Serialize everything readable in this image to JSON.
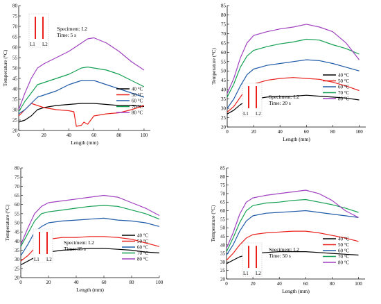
{
  "chart_data": [
    {
      "type": "line",
      "panel": "top-left",
      "specimen_label": "Speciment: L2",
      "time_label": "Time: 5 s",
      "inset": {
        "left_label": "L1",
        "right_label": "L2"
      },
      "xlabel": "Length (mm)",
      "ylabel": "Temperature (°C)",
      "xlim": [
        0,
        105
      ],
      "ylim": [
        20,
        80
      ],
      "xticks": [
        0,
        20,
        40,
        60,
        80,
        100
      ],
      "yticks": [
        20,
        25,
        30,
        35,
        40,
        45,
        50,
        55,
        60,
        65,
        70,
        75,
        80
      ],
      "grid": false,
      "legend_position": "bottom-right",
      "series": [
        {
          "name": "40 °C",
          "color": "#000000",
          "x": [
            0,
            5,
            10,
            15,
            20,
            30,
            40,
            50,
            55,
            60,
            70,
            80,
            90,
            100
          ],
          "y": [
            24,
            25,
            27,
            30,
            31,
            32,
            32.5,
            33,
            33,
            33,
            32.5,
            32,
            32,
            31.5
          ]
        },
        {
          "name": "50 °C",
          "color": "#e8211d",
          "x": [
            0,
            5,
            10,
            15,
            20,
            30,
            40,
            44,
            46,
            50,
            52,
            55,
            60,
            70,
            80,
            90,
            100
          ],
          "y": [
            27,
            30,
            33,
            32,
            31,
            30,
            29.5,
            29,
            22,
            22.5,
            24,
            23,
            27,
            28,
            28.5,
            30,
            32
          ]
        },
        {
          "name": "60 °C",
          "color": "#1f5aa8",
          "x": [
            0,
            5,
            10,
            15,
            20,
            30,
            40,
            50,
            55,
            60,
            70,
            80,
            90,
            100
          ],
          "y": [
            28,
            30,
            33,
            36,
            37,
            39,
            42,
            44,
            44,
            44,
            42,
            40,
            38,
            36
          ]
        },
        {
          "name": "70 °C",
          "color": "#12a050",
          "x": [
            0,
            5,
            10,
            15,
            20,
            30,
            40,
            50,
            55,
            60,
            70,
            80,
            90,
            100
          ],
          "y": [
            29,
            34,
            38,
            42,
            43,
            45,
            47,
            50,
            50.5,
            50,
            49,
            47,
            44,
            41
          ]
        },
        {
          "name": "80 °C",
          "color": "#a040c0",
          "x": [
            0,
            5,
            10,
            15,
            20,
            30,
            40,
            50,
            55,
            60,
            70,
            80,
            90,
            100
          ],
          "y": [
            30,
            38,
            45,
            50,
            52,
            55,
            58,
            62,
            64,
            64.5,
            62,
            58,
            53,
            49
          ]
        }
      ]
    },
    {
      "type": "line",
      "panel": "top-right",
      "specimen_label": "Speciment: L2",
      "time_label": "Time: 20 s",
      "inset": {
        "left_label": "L1",
        "right_label": "L2"
      },
      "xlabel": "Length (mm)",
      "ylabel": "Temperature (°C)",
      "xlim": [
        0,
        105
      ],
      "ylim": [
        20,
        85
      ],
      "xticks": [
        0,
        20,
        40,
        60,
        80,
        100
      ],
      "yticks": [
        20,
        25,
        30,
        35,
        40,
        45,
        50,
        55,
        60,
        65,
        70,
        75,
        80,
        85
      ],
      "grid": false,
      "legend_position": "bottom-right",
      "series": [
        {
          "name": "40 °C",
          "color": "#000000",
          "x": [
            0,
            5,
            10,
            15,
            20,
            30,
            40,
            50,
            60,
            70,
            80,
            90,
            100
          ],
          "y": [
            27,
            29,
            32,
            34,
            35,
            36,
            36.5,
            36.5,
            37,
            36.5,
            36,
            35.5,
            34.5
          ]
        },
        {
          "name": "50 °C",
          "color": "#e8211d",
          "x": [
            0,
            5,
            10,
            15,
            20,
            30,
            40,
            50,
            60,
            70,
            80,
            90,
            100
          ],
          "y": [
            28,
            31,
            36,
            41,
            43,
            45,
            46,
            46.5,
            46,
            45.5,
            44,
            42,
            39.5
          ]
        },
        {
          "name": "60 °C",
          "color": "#1f5aa8",
          "x": [
            0,
            5,
            10,
            15,
            20,
            30,
            40,
            50,
            60,
            70,
            80,
            90,
            100
          ],
          "y": [
            30,
            35,
            42,
            48,
            51,
            53,
            54,
            55,
            56,
            55.5,
            54,
            52,
            50
          ]
        },
        {
          "name": "70 °C",
          "color": "#12a050",
          "x": [
            0,
            5,
            10,
            15,
            20,
            30,
            40,
            50,
            60,
            70,
            80,
            90,
            100
          ],
          "y": [
            36,
            43,
            52,
            58,
            61,
            63,
            64.5,
            65.5,
            67,
            66.5,
            64,
            62,
            59
          ]
        },
        {
          "name": "80 °C",
          "color": "#a040c0",
          "x": [
            0,
            5,
            10,
            15,
            20,
            30,
            40,
            50,
            60,
            70,
            80,
            90,
            100
          ],
          "y": [
            38,
            46,
            57,
            65,
            69,
            71,
            72.5,
            73.5,
            75,
            73.5,
            71,
            65,
            56
          ]
        }
      ]
    },
    {
      "type": "line",
      "panel": "bottom-left",
      "specimen_label": "Speciment: L2",
      "time_label": "Time: 35 s",
      "inset": {
        "left_label": "L1",
        "right_label": "L2"
      },
      "xlabel": "Length (mm)",
      "ylabel": "Temperature (°C)",
      "xlim": [
        0,
        100
      ],
      "ylim": [
        20,
        80
      ],
      "xticks": [
        0,
        20,
        40,
        60,
        80,
        100
      ],
      "yticks": [
        20,
        25,
        30,
        35,
        40,
        45,
        50,
        55,
        60,
        65,
        70,
        75,
        80
      ],
      "grid": false,
      "legend_position": "bottom-right",
      "series": [
        {
          "name": "40 °C",
          "color": "#000000",
          "x": [
            0,
            5,
            10,
            15,
            20,
            30,
            40,
            50,
            60,
            70,
            80,
            90,
            100
          ],
          "y": [
            27,
            29,
            31,
            33,
            34,
            35,
            35.5,
            36,
            36,
            35.5,
            35,
            34,
            33.5
          ]
        },
        {
          "name": "50 °C",
          "color": "#e8211d",
          "x": [
            0,
            5,
            10,
            15,
            20,
            30,
            40,
            50,
            60,
            70,
            80,
            90,
            100
          ],
          "y": [
            29,
            32,
            36,
            39,
            41,
            42,
            42,
            42.5,
            42.5,
            42,
            41,
            39,
            37
          ]
        },
        {
          "name": "60 °C",
          "color": "#1f5aa8",
          "x": [
            0,
            5,
            10,
            15,
            20,
            30,
            40,
            50,
            60,
            70,
            80,
            90,
            100
          ],
          "y": [
            32,
            38,
            45,
            48,
            50,
            51,
            51.5,
            52,
            52.5,
            51.5,
            51,
            50,
            48
          ]
        },
        {
          "name": "70 °C",
          "color": "#12a050",
          "x": [
            0,
            5,
            10,
            15,
            20,
            30,
            40,
            50,
            60,
            70,
            80,
            90,
            100
          ],
          "y": [
            37,
            44,
            51,
            55,
            56,
            57,
            58,
            59,
            59.5,
            59,
            57,
            55,
            52
          ]
        },
        {
          "name": "80 °C",
          "color": "#a040c0",
          "x": [
            0,
            5,
            10,
            15,
            20,
            30,
            40,
            50,
            60,
            70,
            80,
            90,
            100
          ],
          "y": [
            38,
            47,
            55,
            59,
            61,
            62,
            63,
            64,
            65,
            64,
            61,
            58,
            54
          ]
        }
      ]
    },
    {
      "type": "line",
      "panel": "bottom-right",
      "specimen_label": "Speciment: L2",
      "time_label": "Time: 50 s",
      "inset": {
        "left_label": "L1",
        "right_label": "L2"
      },
      "xlabel": "Length (mm)",
      "ylabel": "Temperature (°C)",
      "xlim": [
        0,
        105
      ],
      "ylim": [
        20,
        85
      ],
      "xticks": [
        0,
        20,
        40,
        60,
        80,
        100
      ],
      "yticks": [
        20,
        25,
        30,
        35,
        40,
        45,
        50,
        55,
        60,
        65,
        70,
        75,
        80,
        85
      ],
      "grid": false,
      "legend_position": "bottom-right",
      "series": [
        {
          "name": "40 °C",
          "color": "#000000",
          "x": [
            0,
            5,
            10,
            15,
            20,
            30,
            40,
            50,
            60,
            70,
            80,
            90,
            100
          ],
          "y": [
            29,
            31,
            33,
            34,
            35,
            35.5,
            36,
            36,
            36,
            35.5,
            35,
            34.5,
            34
          ]
        },
        {
          "name": "50 °C",
          "color": "#e8211d",
          "x": [
            0,
            5,
            10,
            15,
            20,
            30,
            40,
            50,
            60,
            70,
            80,
            90,
            100
          ],
          "y": [
            31,
            35,
            40,
            44,
            46,
            47,
            47.5,
            48,
            48,
            47,
            45.5,
            44,
            42
          ]
        },
        {
          "name": "60 °C",
          "color": "#1f5aa8",
          "x": [
            0,
            5,
            10,
            15,
            20,
            30,
            40,
            50,
            60,
            70,
            80,
            90,
            100
          ],
          "y": [
            34,
            40,
            48,
            54,
            57,
            58.5,
            59,
            59.5,
            60,
            59,
            58,
            57,
            56
          ]
        },
        {
          "name": "70 °C",
          "color": "#12a050",
          "x": [
            0,
            5,
            10,
            15,
            20,
            30,
            40,
            50,
            60,
            70,
            80,
            90,
            100
          ],
          "y": [
            36,
            44,
            53,
            60,
            63,
            64.5,
            65,
            66,
            66.5,
            65,
            63.5,
            61.5,
            59
          ]
        },
        {
          "name": "80 °C",
          "color": "#a040c0",
          "x": [
            0,
            5,
            10,
            15,
            20,
            30,
            40,
            50,
            60,
            70,
            80,
            90,
            100
          ],
          "y": [
            38,
            47,
            58,
            65,
            67.5,
            69,
            70,
            71,
            72,
            70,
            66,
            60,
            56
          ]
        }
      ]
    }
  ]
}
